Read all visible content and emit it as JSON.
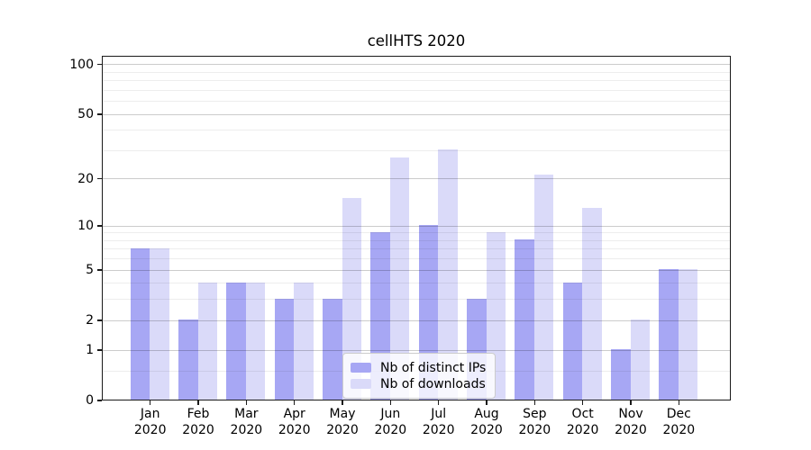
{
  "chart_data": {
    "type": "bar",
    "title": "cellHTS 2020",
    "categories": [
      "Jan 2020",
      "Feb 2020",
      "Mar 2020",
      "Apr 2020",
      "May 2020",
      "Jun 2020",
      "Jul 2020",
      "Aug 2020",
      "Sep 2020",
      "Oct 2020",
      "Nov 2020",
      "Dec 2020"
    ],
    "months": [
      "Jan",
      "Feb",
      "Mar",
      "Apr",
      "May",
      "Jun",
      "Jul",
      "Aug",
      "Sep",
      "Oct",
      "Nov",
      "Dec"
    ],
    "year": "2020",
    "series": [
      {
        "name": "Nb of distinct IPs",
        "key": "distinct-ips",
        "color": "#a7a7f4",
        "values": [
          7,
          2,
          4,
          3,
          3,
          9,
          10,
          3,
          8,
          4,
          1,
          5
        ]
      },
      {
        "name": "Nb of downloads",
        "key": "downloads",
        "color": "#dadaf9",
        "values": [
          7,
          4,
          4,
          4,
          15,
          27,
          30,
          9,
          21,
          13,
          2,
          5
        ]
      }
    ],
    "xlabel": "",
    "ylabel": "",
    "y_scale": "log10(1+v)",
    "ylim": [
      0,
      113
    ],
    "y_major_ticks": [
      0,
      1,
      2,
      5,
      10,
      20,
      50,
      100
    ],
    "y_minor_gridlines": [
      0.5,
      3,
      4,
      6,
      7,
      8,
      9,
      30,
      40,
      60,
      70,
      80,
      90
    ],
    "grid": true,
    "legend_position": "lower center"
  }
}
